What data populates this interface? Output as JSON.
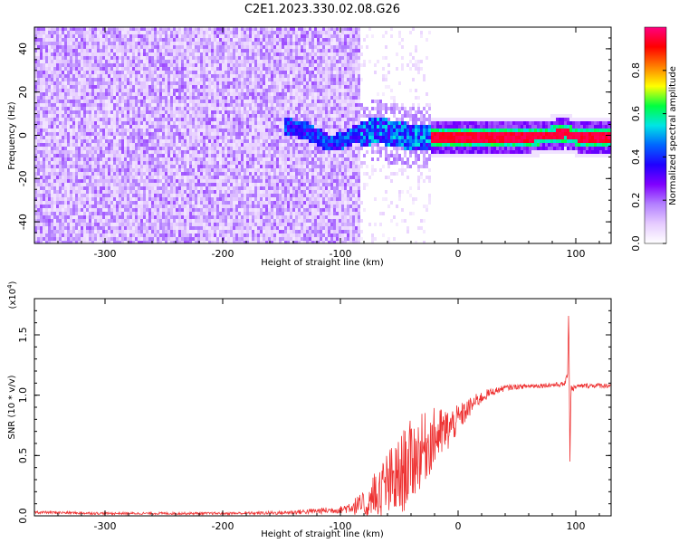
{
  "title": "C2E1.2023.330.02.08.G26",
  "chart_data": [
    {
      "type": "heatmap",
      "xlabel": "Height of straight line (km)",
      "ylabel": "Frequency (Hz)",
      "xlim": [
        -360,
        130
      ],
      "ylim": [
        -50,
        50
      ],
      "xticks": [
        -300,
        -200,
        -100,
        0,
        100
      ],
      "yticks": [
        -40,
        -20,
        0,
        20,
        40
      ],
      "xtick_labels": [
        "-300",
        "-200",
        "-100",
        "0",
        "100"
      ],
      "ytick_labels": [
        "-40",
        "-20",
        "0",
        "20",
        "40"
      ],
      "colorbar": {
        "label": "Normalized spectral amplitude",
        "range": [
          0,
          1
        ],
        "ticks": [
          0.0,
          0.2,
          0.4,
          0.6,
          0.8
        ],
        "tick_labels": [
          "0.0",
          "0.2",
          "0.4",
          "0.6",
          "0.8"
        ],
        "colormap": [
          "#ffffff",
          "#e6ccff",
          "#b380ff",
          "#8000ff",
          "#2000ff",
          "#0066ff",
          "#00e5e5",
          "#00ff40",
          "#ffff00",
          "#ff7f00",
          "#ff0000",
          "#ff0080"
        ]
      },
      "ridge": {
        "description_points_x": [
          -150,
          -130,
          -110,
          -100,
          -90,
          -80,
          -70,
          -60,
          -50,
          -40,
          -30,
          -20,
          0,
          20,
          40,
          60,
          80,
          90,
          100,
          120,
          130
        ],
        "description_points_y": [
          5,
          3,
          -3,
          -2,
          1,
          2,
          3,
          2,
          1,
          0,
          0,
          0,
          0,
          0,
          0,
          0,
          1,
          2,
          0,
          0,
          0
        ],
        "strong_from_x": -25
      }
    },
    {
      "type": "line",
      "xlabel": "Height of straight line (km)",
      "ylabel": "SNR (10 * v/v)",
      "y_multiplier": "(x10",
      "y_multiplier_exp": "4",
      "y_multiplier_close": ")",
      "xlim": [
        -360,
        130
      ],
      "ylim": [
        0,
        18000
      ],
      "xticks": [
        -300,
        -200,
        -100,
        0,
        100
      ],
      "yticks": [
        0,
        5000,
        10000,
        15000
      ],
      "xtick_labels": [
        "-300",
        "-200",
        "-100",
        "0",
        "100"
      ],
      "ytick_labels": [
        "0.0",
        "0.5",
        "1.0",
        "1.5"
      ],
      "series": [
        {
          "color": "#ee3333",
          "x": [
            -360,
            -300,
            -200,
            -150,
            -120,
            -100,
            -90,
            -80,
            -70,
            -60,
            -50,
            -45,
            -40,
            -35,
            -30,
            -25,
            -20,
            -15,
            -10,
            -5,
            0,
            5,
            10,
            15,
            20,
            25,
            30,
            40,
            50,
            60,
            70,
            80,
            90,
            93,
            94,
            95,
            96,
            97,
            100,
            110,
            120,
            130
          ],
          "y": [
            300,
            200,
            200,
            250,
            400,
            500,
            800,
            800,
            1500,
            2500,
            3000,
            4000,
            4500,
            5000,
            5500,
            6000,
            6500,
            6800,
            7000,
            7500,
            8000,
            8500,
            9000,
            9500,
            9800,
            10100,
            10300,
            10600,
            10700,
            10750,
            10800,
            10850,
            10900,
            11500,
            17500,
            4500,
            11000,
            10500,
            10700,
            10800,
            10800,
            10800
          ],
          "noise_amp": [
            120,
            100,
            100,
            150,
            250,
            300,
            600,
            1200,
            2500,
            3000,
            3500,
            3500,
            3500,
            3200,
            3000,
            2800,
            2500,
            2200,
            2000,
            1500,
            1200,
            1000,
            800,
            600,
            500,
            400,
            300,
            250,
            200,
            200,
            200,
            200,
            200,
            300,
            0,
            0,
            300,
            250,
            200,
            200,
            200,
            200
          ]
        }
      ]
    }
  ]
}
